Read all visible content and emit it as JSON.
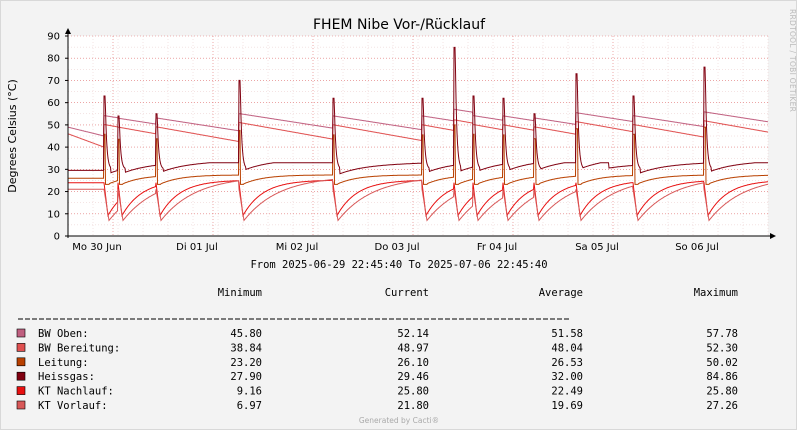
{
  "rrd_credit": "RRDTOOL / TOBI OETIKER",
  "time_range_text": "From 2025-06-29 22:45:40 To 2025-07-06 22:45:40",
  "footer_text": "Generated by Cacti®",
  "legend_headers": [
    "Minimum",
    "Current",
    "Average",
    "Maximum"
  ],
  "legend_rows": [
    {
      "label": "BW Oben:",
      "color": "#c06080",
      "min": "45.80",
      "current": "52.14",
      "average": "51.58",
      "max": "57.78"
    },
    {
      "label": "BW Bereitung:",
      "color": "#e05050",
      "min": "38.84",
      "current": "48.97",
      "average": "48.04",
      "max": "52.30"
    },
    {
      "label": "Leitung:",
      "color": "#b84000",
      "min": "23.20",
      "current": "26.10",
      "average": "26.53",
      "max": "50.02"
    },
    {
      "label": "Heissgas:",
      "color": "#800010",
      "min": "27.90",
      "current": "29.46",
      "average": "32.00",
      "max": "84.86"
    },
    {
      "label": "KT Nachlauf:",
      "color": "#e81010",
      "min": "9.16",
      "current": "25.80",
      "average": "22.49",
      "max": "25.80"
    },
    {
      "label": "KT Vorlauf:",
      "color": "#d85858",
      "min": "6.97",
      "current": "21.80",
      "average": "19.69",
      "max": "27.26"
    }
  ],
  "chart_data": {
    "type": "line",
    "title": "FHEM Nibe Vor-/Rücklauf",
    "ylabel": "Degrees Celsius (°C)",
    "ylim": [
      0,
      90
    ],
    "yticks": [
      0,
      10,
      20,
      30,
      40,
      50,
      60,
      70,
      80,
      90
    ],
    "xlim_days": [
      0,
      7
    ],
    "x_day_labels": [
      {
        "day": 0.05,
        "label": "Mo 30 Jun"
      },
      {
        "day": 1.05,
        "label": "Di 01 Jul"
      },
      {
        "day": 2.05,
        "label": "Mi 02 Jul"
      },
      {
        "day": 3.05,
        "label": "Do 03 Jul"
      },
      {
        "day": 4.05,
        "label": "Fr 04 Jul"
      },
      {
        "day": 5.05,
        "label": "Sa 05 Jul"
      },
      {
        "day": 6.05,
        "label": "So 06 Jul"
      }
    ],
    "grid": true,
    "events": [
      {
        "t": 0.36,
        "peak": 63
      },
      {
        "t": 0.5,
        "peak": 54
      },
      {
        "t": 0.88,
        "peak": 55
      },
      {
        "t": 1.71,
        "peak": 70
      },
      {
        "t": 2.65,
        "peak": 62
      },
      {
        "t": 3.54,
        "peak": 62
      },
      {
        "t": 3.86,
        "peak": 84.86
      },
      {
        "t": 4.05,
        "peak": 63
      },
      {
        "t": 4.35,
        "peak": 62
      },
      {
        "t": 4.66,
        "peak": 55
      },
      {
        "t": 5.08,
        "peak": 73
      },
      {
        "t": 5.65,
        "peak": 63
      },
      {
        "t": 6.36,
        "peak": 76
      }
    ],
    "series": [
      {
        "name": "BW Oben",
        "color": "#c06080"
      },
      {
        "name": "BW Bereitung",
        "color": "#e05050"
      },
      {
        "name": "Leitung",
        "color": "#b84000"
      },
      {
        "name": "Heissgas",
        "color": "#800010"
      },
      {
        "name": "KT Nachlauf",
        "color": "#e81010"
      },
      {
        "name": "KT Vorlauf",
        "color": "#d85858"
      }
    ]
  }
}
